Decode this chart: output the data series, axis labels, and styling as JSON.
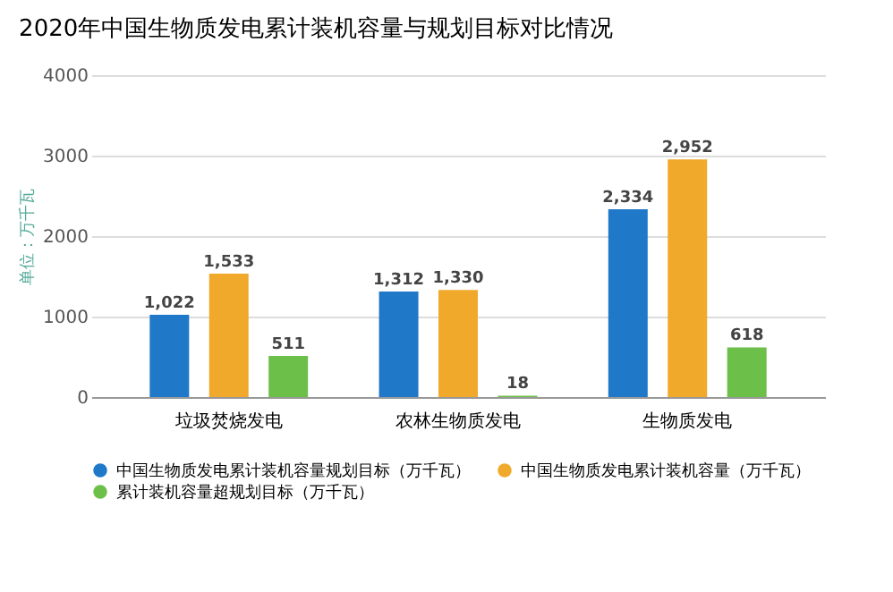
{
  "chart_data": {
    "type": "bar",
    "title": "2020年中国生物质发电累计装机容量与规划目标对比情况",
    "ylabel": "单位：万千瓦",
    "categories": [
      "垃圾焚烧发电",
      "农林生物质发电",
      "生物质发电"
    ],
    "series": [
      {
        "name": "中国生物质发电累计装机容量规划目标（万千瓦）",
        "color": "#1f78c8",
        "values": [
          1022,
          1312,
          2334
        ],
        "value_labels": [
          "1,022",
          "1,312",
          "2,334"
        ]
      },
      {
        "name": "中国生物质发电累计装机容量（万千瓦）",
        "color": "#f0a92a",
        "values": [
          1533,
          1330,
          2952
        ],
        "value_labels": [
          "1,533",
          "1,330",
          "2,952"
        ]
      },
      {
        "name": "累计装机容量超规划目标（万千瓦）",
        "color": "#6cc04a",
        "values": [
          511,
          18,
          618
        ],
        "value_labels": [
          "511",
          "18",
          "618"
        ]
      }
    ],
    "ylim": [
      0,
      4000
    ],
    "yticks": [
      0,
      1000,
      2000,
      3000,
      4000
    ],
    "grid": "y",
    "legend": "bottom"
  }
}
